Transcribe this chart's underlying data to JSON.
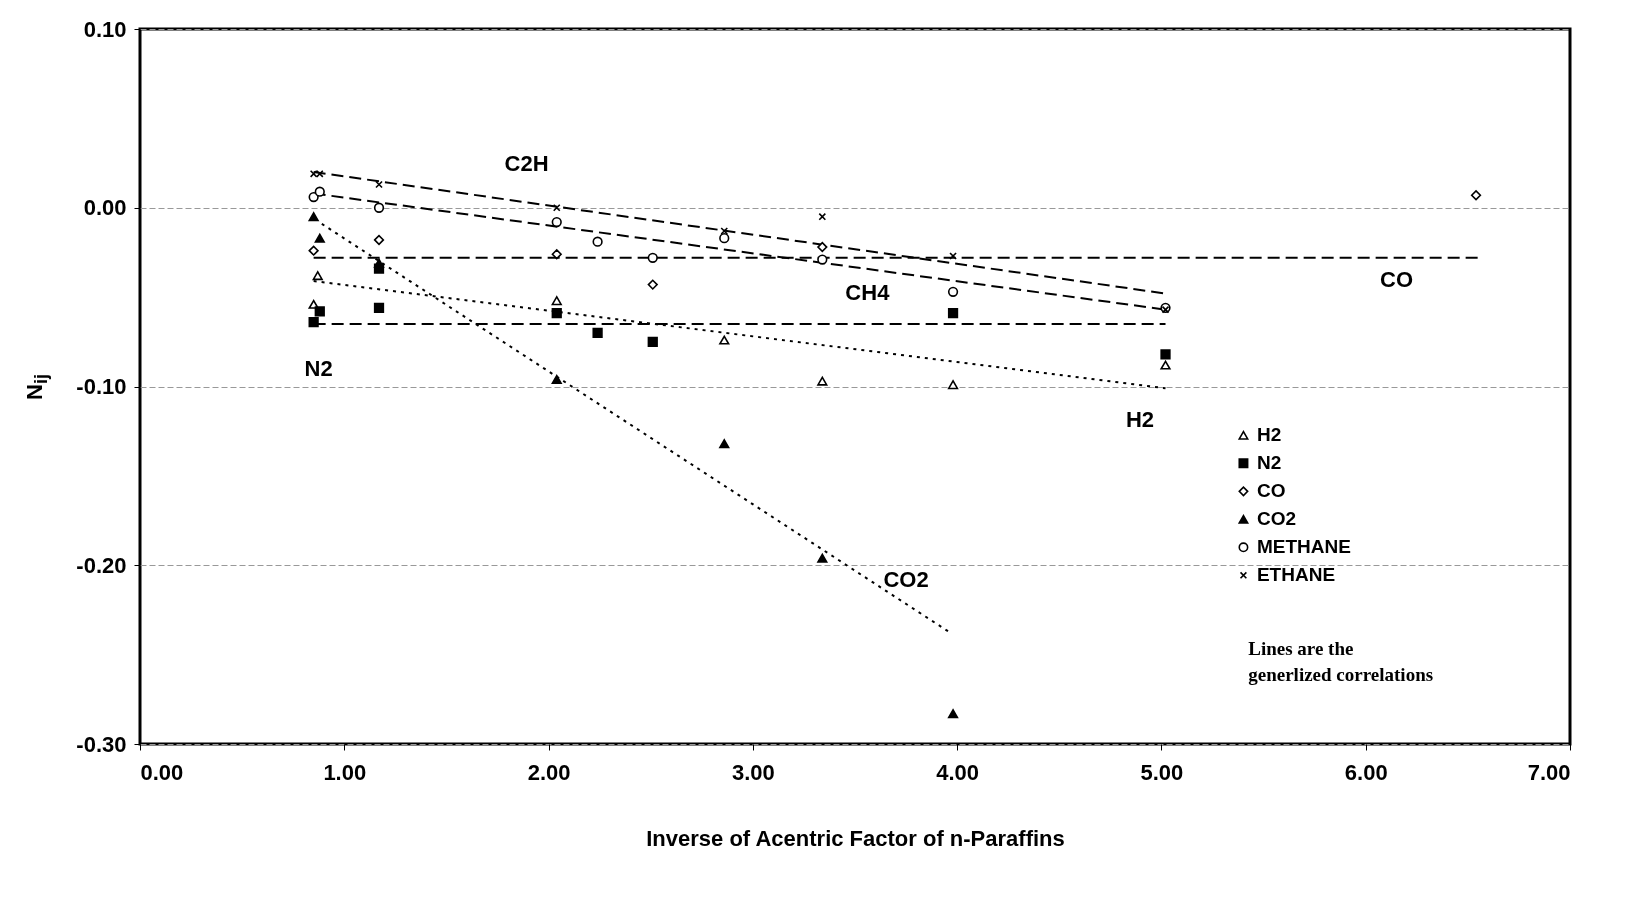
{
  "chart_data": {
    "type": "scatter",
    "xlabel": "Inverse of Acentric Factor of n-Paraffins",
    "ylabel": "N$_{ij}$",
    "xlim": [
      0,
      7
    ],
    "xticks": [
      {
        "value": 0,
        "label": "0.00"
      },
      {
        "value": 1,
        "label": "1.00"
      },
      {
        "value": 2,
        "label": "2.00"
      },
      {
        "value": 3,
        "label": "3.00"
      },
      {
        "value": 4,
        "label": "4.00"
      },
      {
        "value": 5,
        "label": "5.00"
      },
      {
        "value": 6,
        "label": "6.00"
      },
      {
        "value": 7,
        "label": "7.00"
      }
    ],
    "ylim": [
      -0.3,
      0.1
    ],
    "yticks": [
      {
        "value": -0.3,
        "label": "-0.30"
      },
      {
        "value": -0.2,
        "label": "-0.20"
      },
      {
        "value": -0.1,
        "label": "-0.10"
      },
      {
        "value": 0,
        "label": "0.00"
      },
      {
        "value": 0.1,
        "label": "0.10"
      }
    ],
    "grid": "y",
    "legend": "right",
    "series": [
      {
        "name": "H2",
        "color": "#000000",
        "marker": "triangle",
        "x": [
          0.85,
          0.87,
          2.04,
          2.86,
          3.34,
          3.98,
          5.02
        ],
        "values": [
          -0.054,
          -0.038,
          -0.052,
          -0.074,
          -0.097,
          -0.099,
          -0.088
        ]
      },
      {
        "name": "N2",
        "color": "#000000",
        "marker": "square",
        "x": [
          0.85,
          0.88,
          1.17,
          1.17,
          2.04,
          2.24,
          2.51,
          3.98,
          5.02
        ],
        "values": [
          -0.064,
          -0.058,
          -0.034,
          -0.056,
          -0.059,
          -0.07,
          -0.075,
          -0.059,
          -0.082
        ]
      },
      {
        "name": "CO",
        "color": "#000000",
        "marker": "diamond",
        "x": [
          0.85,
          1.17,
          2.04,
          2.51,
          3.34,
          6.54
        ],
        "values": [
          -0.024,
          -0.018,
          -0.026,
          -0.043,
          -0.022,
          0.007
        ]
      },
      {
        "name": "CO2",
        "color": "#000000",
        "marker": "triangle",
        "x": [
          0.85,
          0.88,
          1.17,
          2.04,
          2.86,
          3.34,
          3.98
        ],
        "values": [
          -0.005,
          -0.017,
          -0.031,
          -0.096,
          -0.132,
          -0.196,
          -0.283
        ]
      },
      {
        "name": "METHANE",
        "color": "#000000",
        "marker": "circle",
        "x": [
          0.85,
          0.88,
          1.17,
          2.04,
          2.24,
          2.51,
          2.86,
          3.34,
          3.98,
          5.02
        ],
        "values": [
          0.006,
          0.009,
          0.0,
          -0.008,
          -0.019,
          -0.028,
          -0.017,
          -0.029,
          -0.047,
          -0.056
        ]
      },
      {
        "name": "ETHANE",
        "color": "#000000",
        "marker": "cross",
        "x": [
          0.85,
          0.88,
          1.17,
          2.04,
          2.86,
          3.34,
          3.98,
          5.02
        ],
        "values": [
          0.019,
          0.019,
          0.013,
          0.0,
          -0.013,
          -0.005,
          -0.027,
          -0.057
        ]
      },
      {
        "type": "line",
        "name": "C2H",
        "color": "#000000",
        "line_style": "dashed",
        "x": [
          0.85,
          5.02
        ],
        "values": [
          0.02,
          -0.048
        ]
      },
      {
        "type": "line",
        "name": "CH4",
        "color": "#000000",
        "line_style": "dashed",
        "x": [
          0.85,
          5.02
        ],
        "values": [
          0.008,
          -0.057
        ]
      },
      {
        "type": "line",
        "name": "CO",
        "color": "#000000",
        "line_style": "dashed",
        "x": [
          0.85,
          6.55
        ],
        "values": [
          -0.028,
          -0.028
        ]
      },
      {
        "type": "line",
        "name": "N2",
        "color": "#000000",
        "line_style": "dashed",
        "x": [
          0.85,
          5.02
        ],
        "values": [
          -0.065,
          -0.065
        ]
      },
      {
        "type": "line",
        "name": "H2",
        "color": "#000000",
        "line_style": "dotted",
        "x": [
          0.85,
          5.02
        ],
        "values": [
          -0.041,
          -0.101
        ]
      },
      {
        "type": "line",
        "name": "CO2",
        "color": "#000000",
        "line_style": "dotted",
        "x": [
          0.89,
          3.97
        ],
        "values": [
          -0.009,
          -0.238
        ]
      }
    ],
    "annotations": [
      "Lines are the generlized correlations"
    ]
  }
}
